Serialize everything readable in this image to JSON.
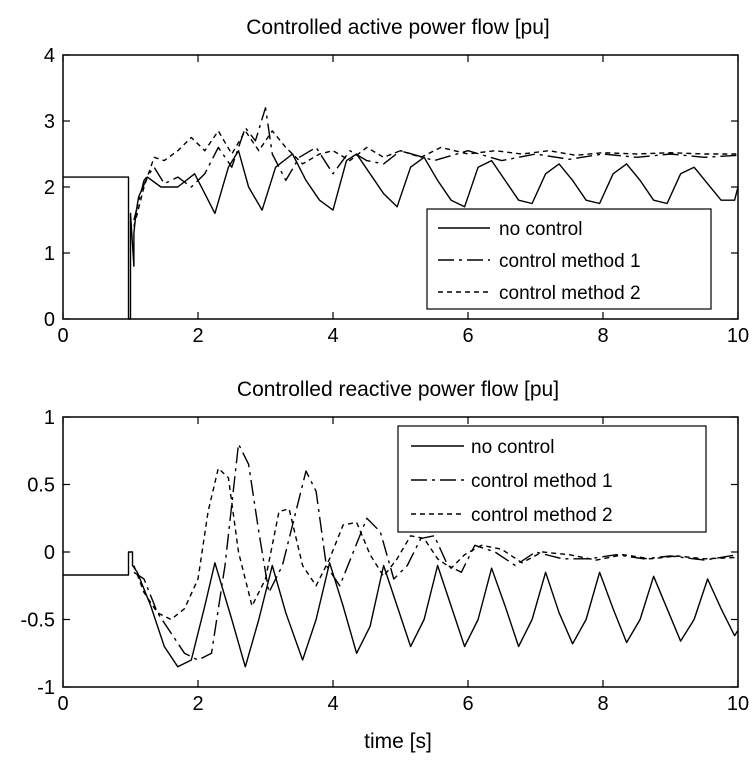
{
  "chart_data": [
    {
      "type": "line",
      "title": "Controlled active power flow [pu]",
      "xlabel": "",
      "ylabel": "",
      "xlim": [
        0,
        10
      ],
      "ylim": [
        0,
        4
      ],
      "xticks": [
        0,
        2,
        4,
        6,
        8,
        10
      ],
      "yticks": [
        0,
        1,
        2,
        3,
        4
      ],
      "grid": false,
      "legend": "bottom-right",
      "series": [
        {
          "name": "no control",
          "style": "solid",
          "x": [
            0,
            0.97,
            0.97,
            1.0,
            1.0,
            1.05,
            1.05,
            1.08,
            1.12,
            1.25,
            1.45,
            1.7,
            1.95,
            2.1,
            2.25,
            2.45,
            2.6,
            2.75,
            2.95,
            3.15,
            3.4,
            3.6,
            3.8,
            4.0,
            4.2,
            4.35,
            4.55,
            4.75,
            4.95,
            5.15,
            5.35,
            5.55,
            5.75,
            5.95,
            6.15,
            6.35,
            6.55,
            6.75,
            6.95,
            7.15,
            7.35,
            7.55,
            7.75,
            7.95,
            8.15,
            8.35,
            8.55,
            8.75,
            8.95,
            9.15,
            9.35,
            9.55,
            9.75,
            9.95,
            10.0
          ],
          "y": [
            2.15,
            2.15,
            0,
            0,
            1.6,
            0.8,
            1.3,
            1.6,
            1.85,
            2.15,
            2.0,
            2.0,
            2.2,
            1.9,
            1.6,
            2.3,
            2.55,
            2.0,
            1.65,
            2.3,
            2.5,
            2.1,
            1.8,
            1.65,
            2.4,
            2.5,
            2.2,
            1.9,
            1.7,
            2.3,
            2.45,
            2.1,
            1.8,
            1.7,
            2.3,
            2.4,
            2.1,
            1.8,
            1.75,
            2.2,
            2.35,
            2.1,
            1.8,
            1.75,
            2.2,
            2.35,
            2.1,
            1.8,
            1.75,
            2.2,
            2.3,
            2.05,
            1.8,
            1.8,
            2.0
          ]
        },
        {
          "name": "control method 1",
          "style": "dashdot",
          "x": [
            1.05,
            1.1,
            1.2,
            1.35,
            1.5,
            1.7,
            1.9,
            2.1,
            2.3,
            2.5,
            2.7,
            2.85,
            3.0,
            3.1,
            3.3,
            3.5,
            3.75,
            4.0,
            4.25,
            4.5,
            4.75,
            5.0,
            5.5,
            6.0,
            6.5,
            7.0,
            7.5,
            8.0,
            8.5,
            9.0,
            9.5,
            10.0
          ],
          "y": [
            1.5,
            1.7,
            2.1,
            2.3,
            2.05,
            2.15,
            2.0,
            2.2,
            2.6,
            2.3,
            2.9,
            2.7,
            3.2,
            2.5,
            2.1,
            2.45,
            2.6,
            2.2,
            2.55,
            2.4,
            2.35,
            2.55,
            2.4,
            2.55,
            2.4,
            2.5,
            2.42,
            2.5,
            2.45,
            2.5,
            2.45,
            2.48
          ]
        },
        {
          "name": "control method 2",
          "style": "dashed",
          "x": [
            1.05,
            1.1,
            1.2,
            1.35,
            1.5,
            1.7,
            1.9,
            2.1,
            2.3,
            2.5,
            2.7,
            2.9,
            3.1,
            3.3,
            3.55,
            3.8,
            4.0,
            4.25,
            4.5,
            4.75,
            5.0,
            5.3,
            5.6,
            6.0,
            6.4,
            6.8,
            7.2,
            7.6,
            8.0,
            8.5,
            9.0,
            9.5,
            10.0
          ],
          "y": [
            1.4,
            1.6,
            2.0,
            2.45,
            2.4,
            2.55,
            2.75,
            2.55,
            2.85,
            2.5,
            2.85,
            2.55,
            2.85,
            2.6,
            2.35,
            2.5,
            2.55,
            2.4,
            2.6,
            2.45,
            2.55,
            2.45,
            2.6,
            2.5,
            2.55,
            2.5,
            2.55,
            2.48,
            2.52,
            2.5,
            2.52,
            2.5,
            2.5
          ]
        }
      ]
    },
    {
      "type": "line",
      "title": "Controlled reactive power flow [pu]",
      "xlabel": "time [s]",
      "ylabel": "",
      "xlim": [
        0,
        10
      ],
      "ylim": [
        -1,
        1
      ],
      "xticks": [
        0,
        2,
        4,
        6,
        8,
        10
      ],
      "yticks": [
        -1,
        -0.5,
        0,
        0.5,
        1
      ],
      "grid": false,
      "legend": "top-right",
      "series": [
        {
          "name": "no control",
          "style": "solid",
          "x": [
            0,
            0.97,
            0.97,
            1.03,
            1.03,
            1.1,
            1.3,
            1.5,
            1.7,
            1.9,
            2.1,
            2.25,
            2.5,
            2.7,
            2.9,
            3.1,
            3.3,
            3.55,
            3.75,
            3.95,
            4.15,
            4.35,
            4.55,
            4.75,
            4.95,
            5.15,
            5.35,
            5.55,
            5.75,
            5.95,
            6.15,
            6.35,
            6.55,
            6.75,
            6.95,
            7.15,
            7.35,
            7.55,
            7.75,
            7.95,
            8.15,
            8.35,
            8.55,
            8.75,
            8.95,
            9.15,
            9.35,
            9.55,
            9.75,
            9.95,
            10.0
          ],
          "y": [
            -0.17,
            -0.17,
            0,
            0,
            -0.1,
            -0.15,
            -0.4,
            -0.7,
            -0.85,
            -0.8,
            -0.4,
            -0.08,
            -0.5,
            -0.85,
            -0.5,
            -0.1,
            -0.45,
            -0.8,
            -0.5,
            -0.08,
            -0.4,
            -0.75,
            -0.55,
            -0.1,
            -0.4,
            -0.7,
            -0.5,
            -0.1,
            -0.4,
            -0.7,
            -0.5,
            -0.12,
            -0.4,
            -0.7,
            -0.5,
            -0.15,
            -0.45,
            -0.68,
            -0.5,
            -0.15,
            -0.42,
            -0.67,
            -0.5,
            -0.18,
            -0.42,
            -0.66,
            -0.5,
            -0.2,
            -0.42,
            -0.62,
            -0.58
          ]
        },
        {
          "name": "control method 1",
          "style": "dashdot",
          "x": [
            1.05,
            1.2,
            1.4,
            1.6,
            1.8,
            2.0,
            2.2,
            2.4,
            2.6,
            2.75,
            2.9,
            3.05,
            3.25,
            3.45,
            3.6,
            3.75,
            3.9,
            4.1,
            4.3,
            4.5,
            4.7,
            4.9,
            5.1,
            5.3,
            5.5,
            5.7,
            5.9,
            6.1,
            6.4,
            6.7,
            7.0,
            7.4,
            7.8,
            8.2,
            8.6,
            9.0,
            9.5,
            10.0
          ],
          "y": [
            -0.15,
            -0.2,
            -0.45,
            -0.6,
            -0.75,
            -0.8,
            -0.75,
            -0.1,
            0.8,
            0.65,
            0.15,
            -0.3,
            -0.1,
            0.3,
            0.6,
            0.45,
            -0.1,
            -0.25,
            0.0,
            0.25,
            0.15,
            -0.2,
            -0.1,
            0.1,
            0.12,
            -0.1,
            -0.15,
            0.05,
            0.0,
            -0.1,
            0.0,
            -0.05,
            -0.05,
            -0.02,
            -0.05,
            -0.03,
            -0.06,
            -0.02
          ]
        },
        {
          "name": "control method 2",
          "style": "dashed",
          "x": [
            1.05,
            1.2,
            1.4,
            1.6,
            1.8,
            2.0,
            2.15,
            2.3,
            2.45,
            2.6,
            2.8,
            3.0,
            3.2,
            3.35,
            3.55,
            3.75,
            3.95,
            4.15,
            4.35,
            4.55,
            4.75,
            4.95,
            5.15,
            5.35,
            5.55,
            5.75,
            5.95,
            6.2,
            6.5,
            6.8,
            7.1,
            7.5,
            7.9,
            8.3,
            8.7,
            9.1,
            9.5,
            10.0
          ],
          "y": [
            -0.1,
            -0.3,
            -0.45,
            -0.5,
            -0.42,
            -0.2,
            0.3,
            0.62,
            0.55,
            0.0,
            -0.4,
            -0.2,
            0.3,
            0.32,
            -0.1,
            -0.25,
            -0.05,
            0.2,
            0.22,
            -0.02,
            -0.18,
            -0.05,
            0.12,
            0.1,
            -0.05,
            -0.12,
            -0.02,
            0.05,
            0.02,
            -0.08,
            0.0,
            -0.02,
            -0.06,
            -0.02,
            -0.05,
            -0.03,
            -0.05,
            -0.04
          ]
        }
      ]
    }
  ]
}
